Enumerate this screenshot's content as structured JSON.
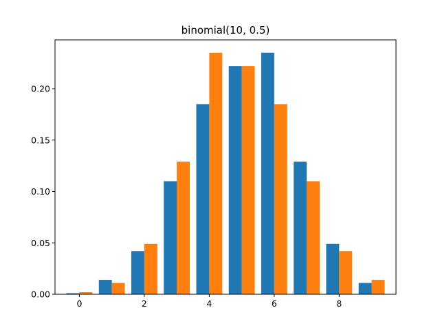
{
  "chart_data": {
    "type": "bar",
    "title": "binomial(10, 0.5)",
    "xlabel": "",
    "ylabel": "",
    "x": [
      0,
      1,
      2,
      3,
      4,
      5,
      6,
      7,
      8,
      9
    ],
    "series": [
      {
        "values": [
          0.001,
          0.014,
          0.042,
          0.11,
          0.185,
          0.222,
          0.235,
          0.129,
          0.049,
          0.011
        ],
        "color": "#1f77b4"
      },
      {
        "values": [
          0.002,
          0.011,
          0.049,
          0.129,
          0.235,
          0.222,
          0.185,
          0.11,
          0.042,
          0.014
        ],
        "color": "#ff7f0e"
      }
    ],
    "xlim": [
      -0.75,
      9.75
    ],
    "ylim": [
      0,
      0.2475
    ],
    "xticks": [
      0,
      2,
      4,
      6,
      8
    ],
    "xtick_labels": [
      "0",
      "2",
      "4",
      "6",
      "8"
    ],
    "yticks": [
      0.0,
      0.05,
      0.1,
      0.15,
      0.2
    ],
    "ytick_labels": [
      "0.00",
      "0.05",
      "0.10",
      "0.15",
      "0.20"
    ],
    "grid": false,
    "legend": false
  }
}
